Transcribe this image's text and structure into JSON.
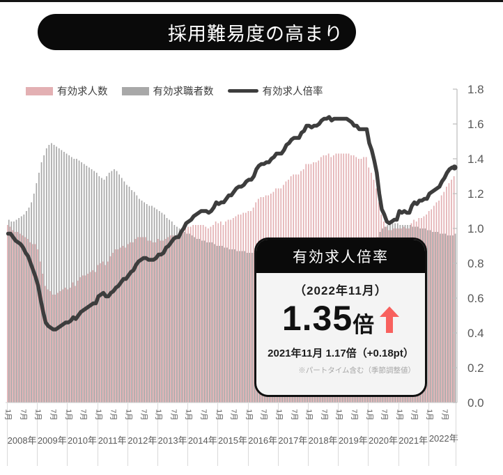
{
  "title": {
    "text": "採用難易度の高まり",
    "bg_color": "#0a0a0a",
    "text_color": "#ffffff"
  },
  "legend": [
    {
      "label": "有効求人数",
      "type": "bar",
      "color": "#e3b0b3"
    },
    {
      "label": "有効求職者数",
      "type": "bar",
      "color": "#a8a8a8"
    },
    {
      "label": "有効求人倍率",
      "type": "line",
      "color": "#3d3d3d"
    }
  ],
  "callout": {
    "header": "有効求人倍率",
    "period": "（2022年11月）",
    "value": "1.35",
    "unit": "倍",
    "arrow": "up",
    "accent_color": "#f8615e",
    "comparison": "2021年11月  1.17倍（+0.18pt）",
    "note": "※パートタイム含む（季節調整値）"
  },
  "chart_data": {
    "type": "combo (monthly bars + line)",
    "x_axis": {
      "start": "2008-01",
      "end": "2022-11",
      "freq": "monthly",
      "year_labels": [
        "2008年",
        "2009年",
        "2010年",
        "2011年",
        "2012年",
        "2013年",
        "2014年",
        "2015年",
        "2016年",
        "2017年",
        "2018年",
        "2019年",
        "2020年",
        "2021年",
        "2022年"
      ],
      "month_tick_labels": [
        "1月",
        "7月"
      ]
    },
    "y_axis": {
      "side": "right",
      "min": 0.0,
      "max": 1.8,
      "step": 0.2,
      "tick_labels": [
        "0.0",
        "0.2",
        "0.4",
        "0.6",
        "0.8",
        "1.0",
        "1.2",
        "1.4",
        "1.6",
        "1.8"
      ]
    },
    "series": [
      {
        "name": "有効求人数",
        "kind": "bar",
        "color": "#e3b0b3",
        "values": [
          1.02,
          1.01,
          0.99,
          0.98,
          0.98,
          0.97,
          0.96,
          0.95,
          0.94,
          0.92,
          0.91,
          0.91,
          0.88,
          0.81,
          0.74,
          0.67,
          0.65,
          0.64,
          0.62,
          0.62,
          0.63,
          0.64,
          0.65,
          0.66,
          0.65,
          0.66,
          0.69,
          0.67,
          0.7,
          0.72,
          0.73,
          0.73,
          0.74,
          0.75,
          0.76,
          0.75,
          0.79,
          0.8,
          0.81,
          0.79,
          0.81,
          0.84,
          0.86,
          0.88,
          0.88,
          0.89,
          0.9,
          0.89,
          0.91,
          0.92,
          0.92,
          0.94,
          0.95,
          0.95,
          0.95,
          0.95,
          0.93,
          0.93,
          0.92,
          0.92,
          0.94,
          0.93,
          0.93,
          0.94,
          0.95,
          0.96,
          0.96,
          0.96,
          0.95,
          0.97,
          0.98,
          1.0,
          1.01,
          1.01,
          1.02,
          1.02,
          1.02,
          1.02,
          1.02,
          1.01,
          1.0,
          1.01,
          1.02,
          1.04,
          1.03,
          1.04,
          1.02,
          1.04,
          1.05,
          1.05,
          1.06,
          1.07,
          1.08,
          1.08,
          1.09,
          1.09,
          1.1,
          1.1,
          1.12,
          1.15,
          1.17,
          1.18,
          1.18,
          1.19,
          1.19,
          1.2,
          1.21,
          1.23,
          1.23,
          1.23,
          1.25,
          1.27,
          1.28,
          1.3,
          1.31,
          1.31,
          1.31,
          1.33,
          1.34,
          1.37,
          1.37,
          1.37,
          1.38,
          1.38,
          1.39,
          1.41,
          1.42,
          1.42,
          1.43,
          1.41,
          1.42,
          1.43,
          1.43,
          1.43,
          1.43,
          1.43,
          1.43,
          1.42,
          1.42,
          1.41,
          1.4,
          1.4,
          1.41,
          1.41,
          1.35,
          1.32,
          1.28,
          1.23,
          1.15,
          1.08,
          1.04,
          1.01,
          0.99,
          0.99,
          1.0,
          1.0,
          1.0,
          1.0,
          1.01,
          1.0,
          1.0,
          1.03,
          1.05,
          1.04,
          1.06,
          1.06,
          1.07,
          1.08,
          1.1,
          1.11,
          1.13,
          1.15,
          1.16,
          1.19,
          1.21,
          1.24,
          1.26,
          1.28,
          1.3
        ]
      },
      {
        "name": "有効求職者数",
        "kind": "bar",
        "color": "#a8a8a8",
        "values": [
          1.05,
          1.04,
          1.04,
          1.05,
          1.06,
          1.07,
          1.08,
          1.1,
          1.12,
          1.15,
          1.2,
          1.26,
          1.32,
          1.38,
          1.42,
          1.46,
          1.48,
          1.49,
          1.48,
          1.47,
          1.46,
          1.45,
          1.44,
          1.43,
          1.42,
          1.41,
          1.4,
          1.4,
          1.39,
          1.38,
          1.37,
          1.36,
          1.35,
          1.34,
          1.33,
          1.32,
          1.3,
          1.29,
          1.28,
          1.3,
          1.32,
          1.33,
          1.34,
          1.33,
          1.31,
          1.29,
          1.27,
          1.25,
          1.24,
          1.22,
          1.21,
          1.19,
          1.17,
          1.16,
          1.15,
          1.14,
          1.13,
          1.13,
          1.12,
          1.11,
          1.1,
          1.09,
          1.08,
          1.06,
          1.05,
          1.04,
          1.02,
          1.01,
          1.0,
          0.99,
          0.98,
          0.97,
          0.97,
          0.96,
          0.95,
          0.94,
          0.94,
          0.93,
          0.93,
          0.92,
          0.92,
          0.92,
          0.91,
          0.9,
          0.9,
          0.9,
          0.89,
          0.89,
          0.88,
          0.88,
          0.88,
          0.87,
          0.87,
          0.87,
          0.87,
          0.86,
          0.86,
          0.86,
          0.86,
          0.86,
          0.86,
          0.86,
          0.86,
          0.86,
          0.86,
          0.86,
          0.86,
          0.86,
          0.86,
          0.86,
          0.86,
          0.86,
          0.86,
          0.86,
          0.86,
          0.86,
          0.86,
          0.86,
          0.86,
          0.86,
          0.86,
          0.87,
          0.87,
          0.87,
          0.87,
          0.87,
          0.87,
          0.87,
          0.87,
          0.87,
          0.87,
          0.88,
          0.88,
          0.88,
          0.88,
          0.88,
          0.88,
          0.88,
          0.89,
          0.89,
          0.89,
          0.89,
          0.9,
          0.9,
          0.91,
          0.92,
          0.93,
          0.95,
          0.98,
          1.0,
          1.01,
          1.02,
          1.03,
          1.03,
          1.03,
          1.03,
          1.02,
          1.02,
          1.02,
          1.02,
          1.02,
          1.01,
          1.01,
          1.01,
          1.0,
          1.0,
          1.0,
          0.99,
          0.99,
          0.98,
          0.98,
          0.98,
          0.97,
          0.97,
          0.97,
          0.96,
          0.96,
          0.96,
          0.97
        ]
      },
      {
        "name": "有効求人倍率",
        "kind": "line",
        "color": "#3d3d3d",
        "values": [
          0.97,
          0.97,
          0.95,
          0.93,
          0.92,
          0.91,
          0.89,
          0.86,
          0.84,
          0.8,
          0.76,
          0.72,
          0.67,
          0.59,
          0.52,
          0.46,
          0.44,
          0.43,
          0.42,
          0.42,
          0.43,
          0.44,
          0.45,
          0.46,
          0.46,
          0.47,
          0.49,
          0.48,
          0.5,
          0.52,
          0.53,
          0.54,
          0.55,
          0.56,
          0.57,
          0.57,
          0.61,
          0.62,
          0.63,
          0.61,
          0.61,
          0.63,
          0.64,
          0.66,
          0.67,
          0.69,
          0.71,
          0.71,
          0.73,
          0.75,
          0.76,
          0.79,
          0.81,
          0.82,
          0.83,
          0.83,
          0.82,
          0.82,
          0.82,
          0.83,
          0.85,
          0.85,
          0.86,
          0.89,
          0.9,
          0.92,
          0.94,
          0.95,
          0.95,
          0.98,
          1.0,
          1.03,
          1.04,
          1.05,
          1.07,
          1.08,
          1.09,
          1.1,
          1.1,
          1.1,
          1.09,
          1.1,
          1.12,
          1.15,
          1.14,
          1.15,
          1.15,
          1.17,
          1.19,
          1.19,
          1.21,
          1.23,
          1.24,
          1.24,
          1.25,
          1.27,
          1.28,
          1.28,
          1.3,
          1.34,
          1.36,
          1.37,
          1.37,
          1.38,
          1.38,
          1.4,
          1.41,
          1.43,
          1.43,
          1.43,
          1.45,
          1.48,
          1.49,
          1.51,
          1.52,
          1.52,
          1.52,
          1.55,
          1.56,
          1.59,
          1.59,
          1.58,
          1.59,
          1.59,
          1.6,
          1.62,
          1.63,
          1.63,
          1.64,
          1.62,
          1.63,
          1.63,
          1.63,
          1.63,
          1.63,
          1.63,
          1.62,
          1.61,
          1.59,
          1.59,
          1.57,
          1.57,
          1.57,
          1.57,
          1.49,
          1.45,
          1.39,
          1.32,
          1.2,
          1.11,
          1.08,
          1.04,
          1.03,
          1.04,
          1.05,
          1.05,
          1.1,
          1.09,
          1.1,
          1.09,
          1.09,
          1.13,
          1.15,
          1.14,
          1.16,
          1.16,
          1.17,
          1.17,
          1.2,
          1.21,
          1.22,
          1.23,
          1.24,
          1.27,
          1.29,
          1.32,
          1.34,
          1.35,
          1.35
        ]
      }
    ]
  }
}
